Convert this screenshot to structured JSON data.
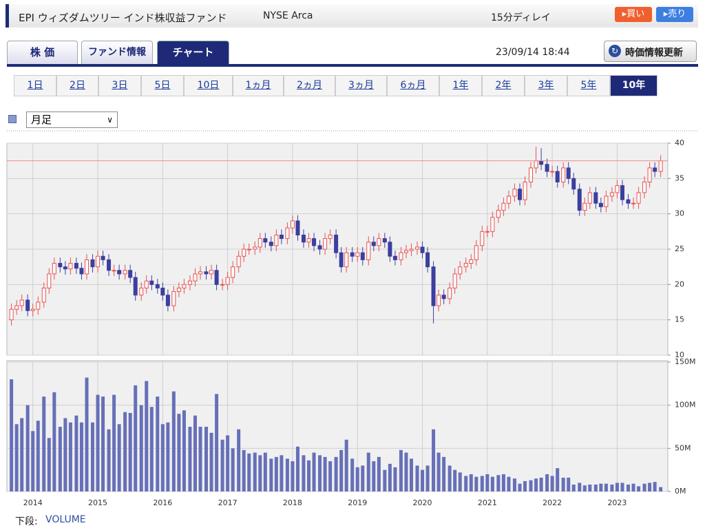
{
  "header": {
    "title": "EPI ウィズダムツリー インド株収益ファンド",
    "exchange": "NYSE Arca",
    "delay": "15分ディレイ",
    "buy": "▸買い",
    "sell": "▸売り"
  },
  "tabs": [
    "株 価",
    "ファンド情報",
    "チャート"
  ],
  "timestamp": "23/09/14 18:44",
  "refresh_button": "時価情報更新",
  "periods": [
    "1日",
    "2日",
    "3日",
    "5日",
    "10日",
    "1ヵ月",
    "2ヵ月",
    "3ヵ月",
    "6ヵ月",
    "1年",
    "2年",
    "3年",
    "5年",
    "10年"
  ],
  "interval_select": "月足",
  "footer": {
    "label": "下段:",
    "indicator": "VOLUME"
  },
  "chart_data": {
    "type": "candlestick",
    "x": [
      2013.67,
      2013.75,
      2013.83,
      2013.92,
      2014.0,
      2014.08,
      2014.17,
      2014.25,
      2014.33,
      2014.42,
      2014.5,
      2014.58,
      2014.67,
      2014.75,
      2014.83,
      2014.92,
      2015.0,
      2015.08,
      2015.17,
      2015.25,
      2015.33,
      2015.42,
      2015.5,
      2015.58,
      2015.67,
      2015.75,
      2015.83,
      2015.92,
      2016.0,
      2016.08,
      2016.17,
      2016.25,
      2016.33,
      2016.42,
      2016.5,
      2016.58,
      2016.67,
      2016.75,
      2016.83,
      2016.92,
      2017.0,
      2017.08,
      2017.17,
      2017.25,
      2017.33,
      2017.42,
      2017.5,
      2017.58,
      2017.67,
      2017.75,
      2017.83,
      2017.92,
      2018.0,
      2018.08,
      2018.17,
      2018.25,
      2018.33,
      2018.42,
      2018.5,
      2018.58,
      2018.67,
      2018.75,
      2018.83,
      2018.92,
      2019.0,
      2019.08,
      2019.17,
      2019.25,
      2019.33,
      2019.42,
      2019.5,
      2019.58,
      2019.67,
      2019.75,
      2019.83,
      2019.92,
      2020.0,
      2020.08,
      2020.17,
      2020.25,
      2020.33,
      2020.42,
      2020.5,
      2020.58,
      2020.67,
      2020.75,
      2020.83,
      2020.92,
      2021.0,
      2021.08,
      2021.17,
      2021.25,
      2021.33,
      2021.42,
      2021.5,
      2021.58,
      2021.67,
      2021.75,
      2021.83,
      2021.92,
      2022.0,
      2022.08,
      2022.17,
      2022.25,
      2022.33,
      2022.42,
      2022.5,
      2022.58,
      2022.67,
      2022.75,
      2022.83,
      2022.92,
      2023.0,
      2023.08,
      2023.17,
      2023.25,
      2023.33,
      2023.42,
      2023.5,
      2023.58,
      2023.67
    ],
    "open": [
      15.0,
      16.5,
      17.0,
      17.8,
      16.3,
      16.5,
      17.5,
      19.5,
      21.5,
      23.0,
      22.5,
      22.2,
      23.0,
      22.3,
      21.5,
      23.5,
      22.5,
      24.0,
      23.5,
      22.0,
      22.0,
      21.5,
      22.0,
      21.0,
      18.5,
      19.5,
      20.5,
      20.0,
      19.5,
      18.5,
      17.0,
      19.0,
      19.5,
      20.0,
      20.5,
      21.5,
      21.8,
      21.5,
      22.0,
      20.0,
      20.0,
      21.0,
      22.5,
      24.0,
      25.0,
      25.0,
      25.3,
      26.5,
      26.0,
      25.5,
      27.0,
      26.5,
      28.0,
      29.0,
      27.0,
      26.0,
      26.5,
      25.5,
      25.0,
      26.5,
      27.0,
      24.5,
      22.5,
      24.5,
      24.0,
      24.5,
      23.5,
      26.0,
      25.5,
      26.5,
      26.0,
      24.0,
      23.5,
      24.5,
      24.8,
      25.0,
      25.3,
      24.5,
      22.5,
      17.0,
      18.5,
      18.0,
      19.5,
      21.5,
      22.5,
      23.0,
      23.5,
      25.5,
      27.5,
      27.5,
      29.5,
      30.5,
      31.5,
      32.5,
      33.5,
      32.0,
      34.5,
      36.5,
      37.5,
      37.0,
      36.0,
      36.0,
      34.5,
      36.5,
      35.0,
      33.5,
      30.5,
      31.5,
      33.0,
      31.5,
      31.0,
      32.5,
      33.0,
      34.0,
      32.0,
      31.5,
      31.5,
      33.0,
      34.5,
      36.5,
      36.0
    ],
    "high": [
      17.3,
      17.8,
      18.6,
      18.6,
      17.3,
      18.3,
      20.3,
      22.3,
      23.8,
      23.8,
      23.3,
      23.8,
      23.8,
      23.1,
      24.3,
      24.3,
      24.8,
      24.8,
      24.3,
      22.8,
      22.8,
      22.8,
      22.8,
      21.8,
      20.3,
      21.3,
      21.3,
      20.8,
      20.3,
      19.3,
      19.8,
      20.3,
      20.8,
      21.3,
      22.3,
      22.6,
      22.6,
      22.8,
      22.8,
      20.8,
      21.8,
      23.3,
      24.8,
      25.8,
      25.8,
      26.1,
      27.3,
      27.3,
      26.8,
      27.8,
      27.8,
      28.8,
      29.8,
      29.8,
      27.8,
      27.3,
      27.3,
      26.3,
      27.3,
      27.8,
      27.8,
      25.3,
      25.3,
      25.3,
      25.3,
      25.3,
      26.8,
      26.8,
      27.3,
      27.3,
      26.8,
      24.8,
      25.3,
      25.6,
      25.8,
      26.1,
      26.1,
      25.3,
      23.3,
      19.3,
      19.3,
      20.3,
      22.3,
      23.3,
      23.8,
      24.3,
      26.3,
      28.3,
      28.3,
      30.3,
      31.3,
      32.3,
      33.3,
      34.3,
      34.3,
      35.3,
      37.3,
      39.5,
      39.3,
      37.8,
      36.8,
      36.8,
      37.3,
      37.3,
      35.8,
      34.3,
      32.3,
      33.8,
      33.8,
      32.3,
      33.3,
      33.8,
      34.8,
      34.8,
      32.8,
      32.3,
      33.8,
      35.3,
      37.3,
      37.3,
      38.3
    ],
    "low": [
      14.2,
      15.7,
      16.2,
      15.5,
      15.5,
      15.7,
      16.7,
      18.7,
      20.7,
      21.7,
      21.4,
      21.4,
      21.5,
      20.7,
      20.7,
      21.7,
      21.7,
      22.7,
      21.2,
      21.2,
      20.7,
      20.7,
      20.2,
      17.7,
      17.7,
      18.7,
      19.2,
      18.7,
      17.7,
      16.2,
      16.2,
      18.2,
      18.7,
      19.2,
      19.7,
      20.7,
      20.7,
      20.7,
      19.2,
      19.2,
      19.2,
      20.2,
      21.7,
      23.2,
      24.2,
      24.2,
      24.5,
      25.2,
      24.7,
      24.7,
      25.7,
      25.7,
      27.2,
      26.2,
      25.2,
      25.2,
      24.7,
      24.2,
      24.2,
      25.7,
      23.7,
      21.7,
      21.7,
      23.2,
      23.2,
      22.7,
      22.7,
      24.7,
      24.7,
      25.2,
      23.2,
      22.7,
      22.7,
      23.7,
      24,
      24.2,
      23.7,
      21.7,
      14.5,
      16.2,
      17.2,
      17.2,
      18.7,
      20.7,
      21.7,
      22.2,
      22.7,
      24.7,
      26.7,
      26.7,
      28.7,
      29.7,
      30.7,
      31.7,
      31.2,
      31.2,
      33.7,
      35.7,
      36.2,
      35.2,
      35.2,
      33.7,
      33.7,
      34.2,
      32.7,
      29.7,
      29.7,
      30.7,
      30.7,
      30.2,
      30.2,
      31.7,
      32.2,
      31.2,
      30.7,
      30.7,
      30.7,
      32.2,
      33.7,
      35.2,
      35.2
    ],
    "close": [
      16.5,
      17.0,
      17.8,
      16.3,
      16.5,
      17.5,
      19.5,
      21.5,
      23.0,
      22.5,
      22.2,
      23.0,
      22.3,
      21.5,
      23.5,
      22.5,
      24.0,
      23.5,
      22.0,
      22.0,
      21.5,
      22.0,
      21.0,
      18.5,
      19.5,
      20.5,
      20.0,
      19.5,
      18.5,
      17.0,
      19.0,
      19.5,
      20.0,
      20.5,
      21.5,
      21.8,
      21.5,
      22.0,
      20.0,
      20.0,
      21.0,
      22.5,
      24.0,
      25.0,
      25.0,
      25.3,
      26.5,
      26.0,
      25.5,
      27.0,
      26.5,
      28.0,
      29.0,
      27.0,
      26.0,
      26.5,
      25.5,
      25.0,
      26.5,
      27.0,
      24.5,
      22.5,
      24.5,
      24.0,
      24.5,
      23.5,
      26.0,
      25.5,
      26.5,
      26.0,
      24.0,
      23.5,
      24.5,
      24.8,
      25.0,
      25.3,
      24.5,
      22.5,
      17.0,
      18.5,
      18.0,
      19.5,
      21.5,
      22.5,
      23.0,
      23.5,
      25.5,
      27.5,
      27.5,
      29.5,
      30.5,
      31.5,
      32.5,
      33.5,
      32.0,
      34.5,
      36.5,
      37.5,
      37.0,
      36.0,
      36.0,
      34.5,
      36.5,
      35.0,
      33.5,
      30.5,
      31.5,
      33.0,
      31.5,
      31.0,
      32.5,
      33.0,
      34.0,
      32.0,
      31.5,
      31.5,
      33.0,
      34.5,
      36.5,
      36.0,
      37.5
    ],
    "up_color": "#e8504f",
    "down_color": "#3b3f9e",
    "reference_line": 37.5,
    "reference_color": "#f08a8a",
    "xlim": [
      2013.6,
      2023.78
    ],
    "xticks": [
      2014,
      2015,
      2016,
      2017,
      2018,
      2019,
      2020,
      2021,
      2022,
      2023
    ],
    "ylim": [
      10,
      40
    ],
    "yticks": [
      10,
      15,
      20,
      25,
      30,
      35,
      40
    ],
    "grid": true,
    "volume": {
      "type": "bar",
      "color": "#6670b8",
      "values": [
        130,
        78,
        85,
        100,
        70,
        82,
        110,
        62,
        115,
        75,
        85,
        80,
        88,
        80,
        132,
        80,
        112,
        110,
        72,
        112,
        78,
        92,
        91,
        123,
        100,
        128,
        98,
        110,
        78,
        80,
        116,
        90,
        94,
        75,
        88,
        75,
        75,
        68,
        113,
        60,
        65,
        50,
        72,
        48,
        44,
        45,
        42,
        45,
        38,
        40,
        42,
        38,
        35,
        52,
        42,
        36,
        45,
        42,
        40,
        35,
        40,
        48,
        60,
        38,
        28,
        30,
        45,
        35,
        40,
        25,
        32,
        28,
        48,
        45,
        38,
        30,
        25,
        30,
        72,
        45,
        40,
        30,
        25,
        22,
        18,
        20,
        17,
        18,
        20,
        17,
        19,
        20,
        17,
        15,
        9,
        12,
        13,
        15,
        16,
        20,
        18,
        27,
        16,
        16,
        8,
        10,
        7,
        8,
        8,
        9,
        9,
        8,
        10,
        10,
        8,
        9,
        6,
        9,
        10,
        11,
        5
      ],
      "ylim": [
        0,
        150
      ],
      "yticks": [
        {
          "value": 0,
          "label": "0M"
        },
        {
          "value": 50,
          "label": "50M"
        },
        {
          "value": 100,
          "label": "100M"
        },
        {
          "value": 150,
          "label": "150M"
        }
      ]
    }
  }
}
